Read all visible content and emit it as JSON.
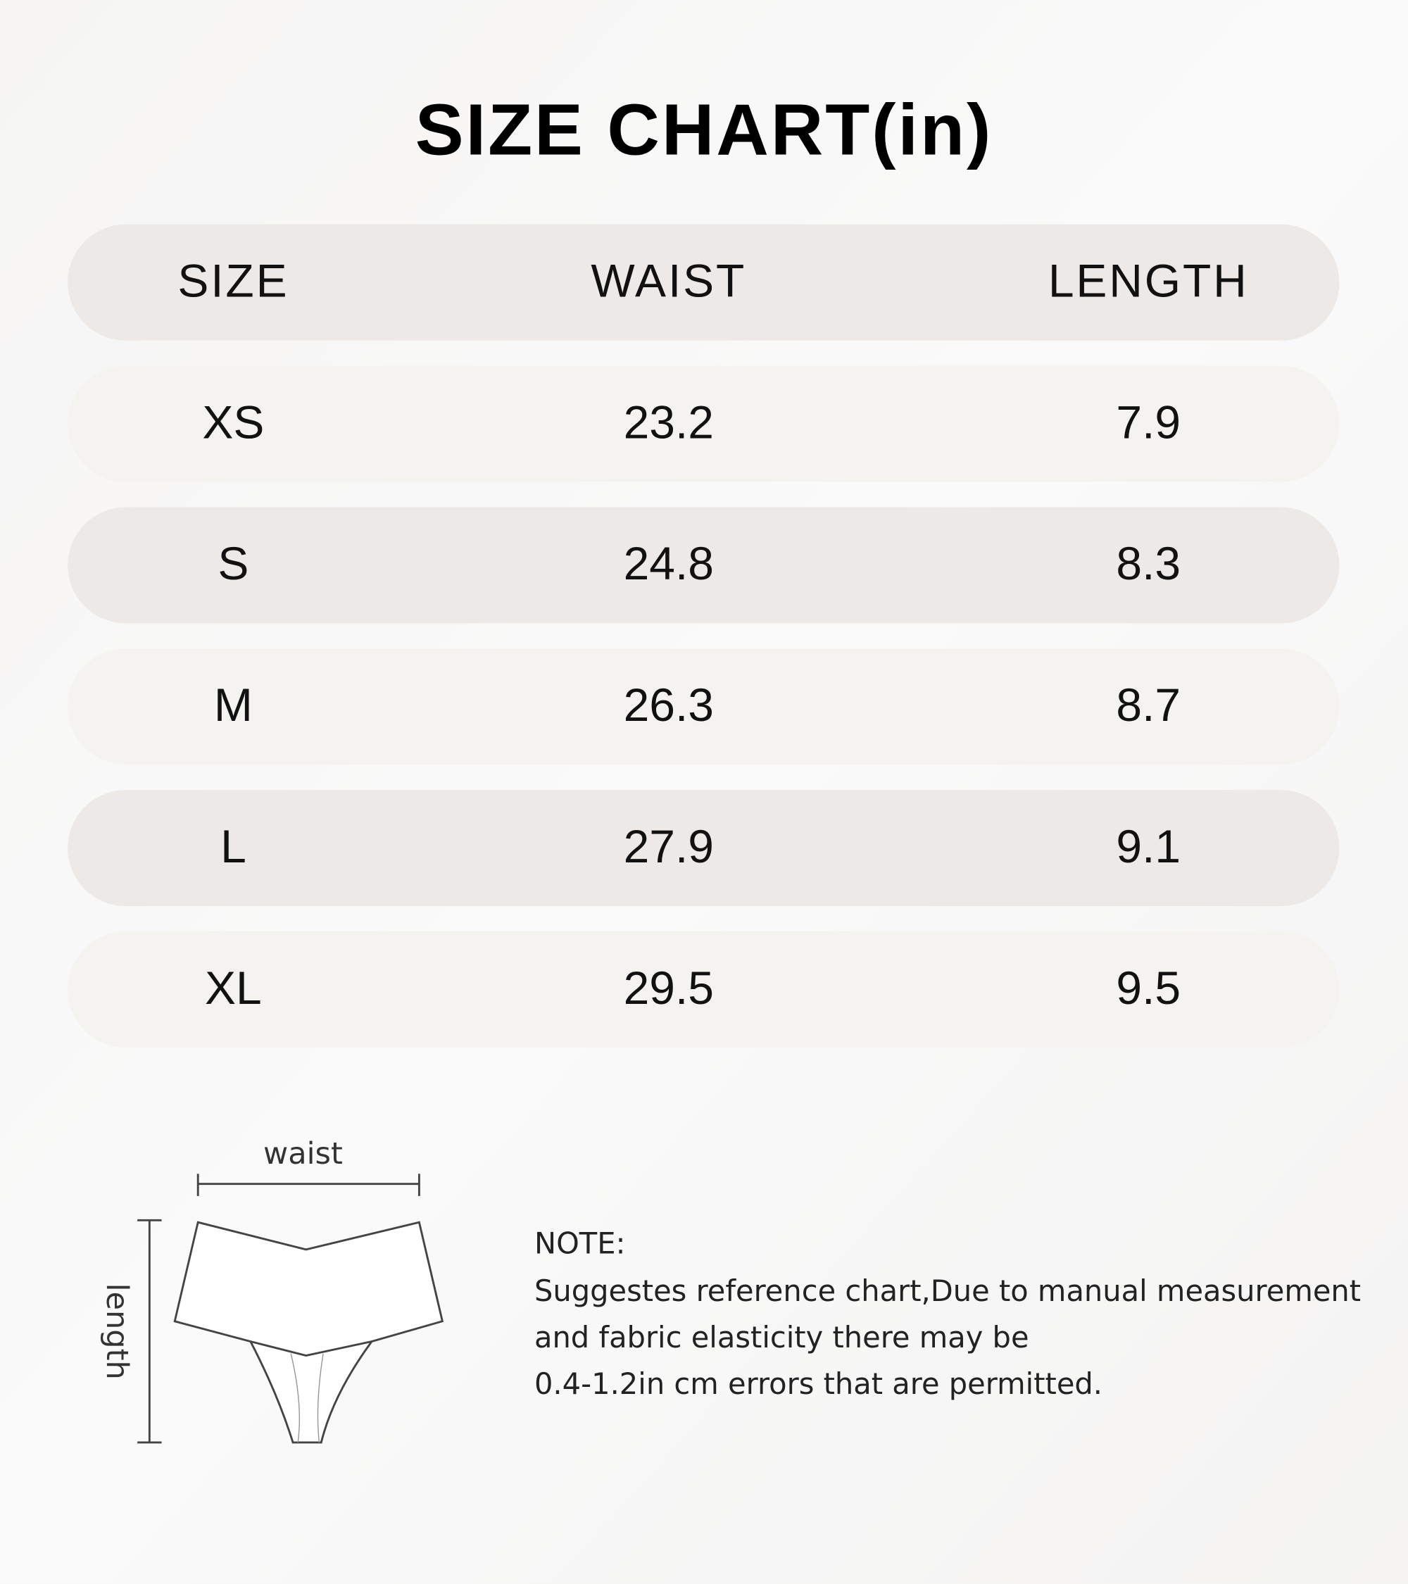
{
  "title": "SIZE CHART(in)",
  "table": {
    "header": [
      "SIZE",
      "WAIST",
      "LENGTH"
    ],
    "rows": [
      [
        "XS",
        "23.2",
        "7.9"
      ],
      [
        "S",
        "24.8",
        "8.3"
      ],
      [
        "M",
        "26.3",
        "8.7"
      ],
      [
        "L",
        "27.9",
        "9.1"
      ],
      [
        "XL",
        "29.5",
        "9.5"
      ]
    ]
  },
  "diagram": {
    "waist_label": "waist",
    "length_label": "length"
  },
  "note": {
    "heading": "NOTE:",
    "lines": [
      "Suggestes reference chart,Due to manual measurement",
      "and fabric elasticity there may be",
      "0.4-1.2in cm errors that are permitted."
    ]
  }
}
